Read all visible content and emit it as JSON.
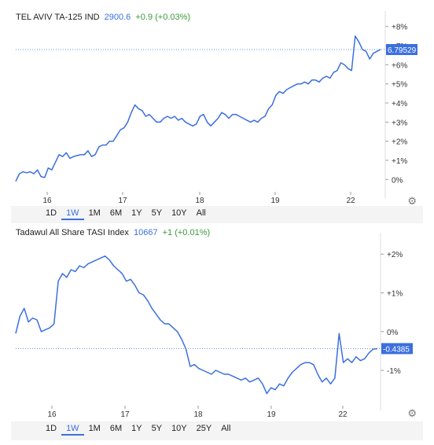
{
  "charts": [
    {
      "header": {
        "name": "TEL AVIV TA-125 IND",
        "price": "2900.6",
        "change": "+0.9 (+0.03%)"
      },
      "ranges": [
        "1D",
        "1W",
        "1M",
        "6M",
        "1Y",
        "5Y",
        "10Y",
        "All"
      ],
      "active_range": "1W",
      "gear_icon": "gear-icon",
      "chart_data": {
        "type": "line",
        "x_ticks": [
          "16",
          "17",
          "18",
          "19",
          "22"
        ],
        "y_ticks": [
          "0%",
          "+1%",
          "+2%",
          "+3%",
          "+4%",
          "+5%",
          "+6%",
          "+7%",
          "+8%"
        ],
        "ylim": [
          -0.4,
          8.4
        ],
        "last_value_label": "6.79529",
        "last_value": 6.795,
        "line_color": "#3b6fe0",
        "series": [
          {
            "values": [
              -0.1,
              0.3,
              0.4,
              0.35,
              0.4,
              0.3,
              0.5,
              0.15,
              0.1,
              0.6,
              0.5,
              0.9,
              1.3,
              1.2,
              1.4,
              1.1,
              1.2,
              1.25,
              1.3,
              1.3,
              1.5,
              1.2,
              1.3,
              1.7,
              1.8,
              1.8,
              2.0,
              2.0,
              2.3,
              2.6,
              2.7,
              3.0,
              3.5,
              3.9,
              3.7,
              3.6,
              3.3,
              3.4,
              3.2,
              3.0,
              3.0,
              3.2,
              3.3,
              3.2,
              3.3,
              3.1,
              3.2,
              3.0,
              2.9,
              2.8,
              2.9,
              3.3,
              3.4,
              3.0,
              2.8,
              3.0,
              3.2,
              3.5,
              3.4,
              3.2,
              3.4,
              3.4,
              3.3,
              3.2,
              3.1,
              3.0,
              3.1,
              3.0,
              3.2,
              3.3,
              3.7,
              3.9,
              4.4,
              4.6,
              4.5,
              4.7,
              4.8,
              4.9,
              5.0,
              5.0,
              5.1,
              5.0,
              5.2,
              5.2,
              5.1,
              5.3,
              5.4,
              5.3,
              5.6,
              5.7,
              6.1,
              6.0,
              5.8,
              5.7,
              7.5,
              7.2,
              6.8,
              6.7,
              6.3,
              6.6,
              6.7,
              6.8
            ]
          }
        ]
      }
    },
    {
      "header": {
        "name": "Tadawul All Share TASI Index",
        "price": "10667",
        "change": "+1 (+0.01%)"
      },
      "ranges": [
        "1D",
        "1W",
        "1M",
        "6M",
        "1Y",
        "5Y",
        "10Y",
        "25Y",
        "All"
      ],
      "active_range": "1W",
      "gear_icon": "gear-icon",
      "chart_data": {
        "type": "line",
        "x_ticks": [
          "16",
          "17",
          "18",
          "19",
          "22"
        ],
        "y_ticks": [
          "-1%",
          "0%",
          "+1%",
          "+2%"
        ],
        "ylim": [
          -1.75,
          2.35
        ],
        "last_value_label": "-0.4385",
        "last_value": -0.4385,
        "line_color": "#3b6fe0",
        "series": [
          {
            "values": [
              -0.05,
              0.4,
              0.6,
              0.25,
              0.35,
              0.3,
              0.0,
              0.05,
              0.1,
              0.2,
              1.3,
              1.5,
              1.4,
              1.6,
              1.55,
              1.7,
              1.65,
              1.75,
              1.8,
              1.85,
              1.9,
              1.95,
              1.85,
              1.7,
              1.6,
              1.5,
              1.3,
              1.35,
              1.2,
              1.0,
              0.95,
              0.8,
              0.6,
              0.45,
              0.3,
              0.2,
              0.2,
              0.1,
              0.0,
              -0.2,
              -0.45,
              -0.9,
              -0.85,
              -0.95,
              -1.0,
              -1.05,
              -1.1,
              -1.0,
              -1.05,
              -1.1,
              -1.1,
              -1.15,
              -1.2,
              -1.25,
              -1.2,
              -1.3,
              -1.25,
              -1.2,
              -1.35,
              -1.6,
              -1.45,
              -1.5,
              -1.35,
              -1.4,
              -1.2,
              -1.05,
              -0.95,
              -0.85,
              -0.8,
              -0.8,
              -0.85,
              -1.1,
              -1.3,
              -1.2,
              -1.35,
              -1.2,
              -0.05,
              -0.8,
              -0.7,
              -0.8,
              -0.65,
              -0.75,
              -0.7,
              -0.55,
              -0.45,
              -0.44
            ]
          }
        ]
      }
    }
  ]
}
